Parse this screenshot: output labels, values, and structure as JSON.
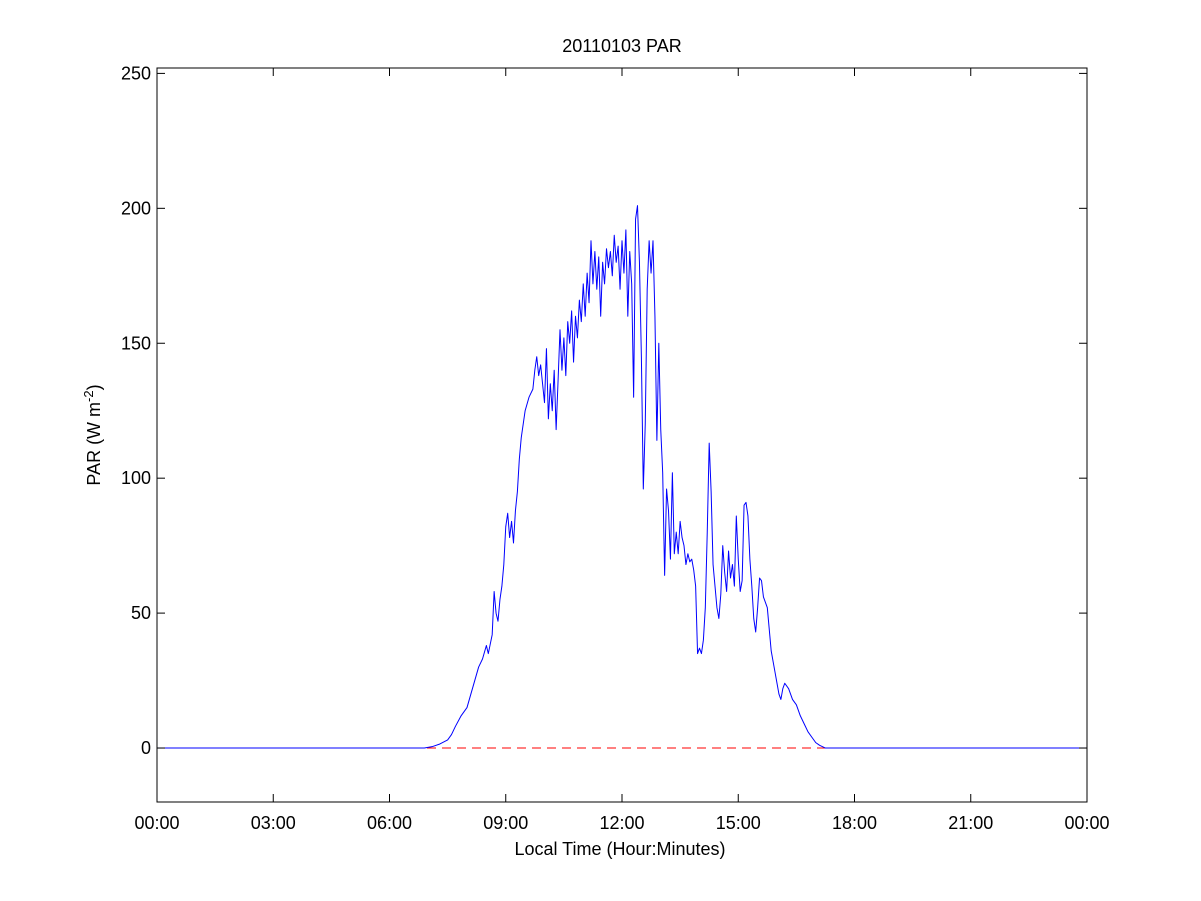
{
  "chart_data": {
    "type": "line",
    "title": "20110103 PAR",
    "xlabel": "Local Time (Hour:Minutes)",
    "ylabel_main": "PAR (W m",
    "ylabel_sup": "-2",
    "ylabel_close": ")",
    "xlim": [
      0,
      24
    ],
    "ylim": [
      -20,
      252
    ],
    "x_ticks": [
      0,
      3,
      6,
      9,
      12,
      15,
      18,
      21,
      24
    ],
    "x_tick_labels": [
      "00:00",
      "03:00",
      "06:00",
      "09:00",
      "12:00",
      "15:00",
      "18:00",
      "21:00",
      "00:00"
    ],
    "y_ticks": [
      0,
      50,
      100,
      150,
      200,
      250
    ],
    "y_tick_labels": [
      "0",
      "50",
      "100",
      "150",
      "200",
      "250"
    ],
    "grid": false,
    "legend": "none",
    "series": [
      {
        "color": "#0000ff",
        "style": "solid",
        "points": [
          [
            0,
            0
          ],
          [
            6.9,
            0
          ],
          [
            7.1,
            0.5
          ],
          [
            7.3,
            1.5
          ],
          [
            7.5,
            3
          ],
          [
            7.6,
            5
          ],
          [
            7.7,
            8
          ],
          [
            7.85,
            12
          ],
          [
            8.0,
            15
          ],
          [
            8.1,
            20
          ],
          [
            8.2,
            25
          ],
          [
            8.3,
            30
          ],
          [
            8.4,
            33
          ],
          [
            8.5,
            38
          ],
          [
            8.55,
            35
          ],
          [
            8.65,
            42
          ],
          [
            8.7,
            58
          ],
          [
            8.75,
            50
          ],
          [
            8.8,
            47
          ],
          [
            8.85,
            55
          ],
          [
            8.9,
            60
          ],
          [
            8.95,
            68
          ],
          [
            9.0,
            82
          ],
          [
            9.05,
            87
          ],
          [
            9.1,
            78
          ],
          [
            9.15,
            84
          ],
          [
            9.2,
            76
          ],
          [
            9.25,
            88
          ],
          [
            9.3,
            95
          ],
          [
            9.35,
            107
          ],
          [
            9.4,
            115
          ],
          [
            9.5,
            125
          ],
          [
            9.6,
            130
          ],
          [
            9.7,
            133
          ],
          [
            9.75,
            140
          ],
          [
            9.8,
            145
          ],
          [
            9.85,
            138
          ],
          [
            9.9,
            142
          ],
          [
            10.0,
            128
          ],
          [
            10.05,
            148
          ],
          [
            10.1,
            122
          ],
          [
            10.15,
            135
          ],
          [
            10.2,
            125
          ],
          [
            10.25,
            140
          ],
          [
            10.3,
            118
          ],
          [
            10.35,
            136
          ],
          [
            10.4,
            155
          ],
          [
            10.45,
            140
          ],
          [
            10.5,
            152
          ],
          [
            10.55,
            138
          ],
          [
            10.6,
            158
          ],
          [
            10.65,
            150
          ],
          [
            10.7,
            162
          ],
          [
            10.75,
            143
          ],
          [
            10.8,
            160
          ],
          [
            10.85,
            152
          ],
          [
            10.9,
            166
          ],
          [
            10.95,
            158
          ],
          [
            11.0,
            172
          ],
          [
            11.05,
            160
          ],
          [
            11.1,
            176
          ],
          [
            11.15,
            165
          ],
          [
            11.2,
            188
          ],
          [
            11.25,
            172
          ],
          [
            11.3,
            184
          ],
          [
            11.35,
            170
          ],
          [
            11.4,
            182
          ],
          [
            11.45,
            160
          ],
          [
            11.5,
            180
          ],
          [
            11.55,
            172
          ],
          [
            11.6,
            185
          ],
          [
            11.65,
            178
          ],
          [
            11.7,
            184
          ],
          [
            11.75,
            175
          ],
          [
            11.8,
            190
          ],
          [
            11.85,
            180
          ],
          [
            11.9,
            186
          ],
          [
            11.95,
            170
          ],
          [
            12.0,
            188
          ],
          [
            12.05,
            176
          ],
          [
            12.1,
            192
          ],
          [
            12.15,
            160
          ],
          [
            12.2,
            184
          ],
          [
            12.25,
            172
          ],
          [
            12.3,
            130
          ],
          [
            12.35,
            196
          ],
          [
            12.4,
            201
          ],
          [
            12.45,
            180
          ],
          [
            12.5,
            145
          ],
          [
            12.55,
            96
          ],
          [
            12.6,
            120
          ],
          [
            12.65,
            170
          ],
          [
            12.7,
            188
          ],
          [
            12.75,
            176
          ],
          [
            12.8,
            188
          ],
          [
            12.85,
            160
          ],
          [
            12.9,
            114
          ],
          [
            12.95,
            150
          ],
          [
            13.0,
            118
          ],
          [
            13.05,
            102
          ],
          [
            13.1,
            64
          ],
          [
            13.15,
            96
          ],
          [
            13.2,
            88
          ],
          [
            13.25,
            70
          ],
          [
            13.3,
            102
          ],
          [
            13.35,
            72
          ],
          [
            13.4,
            80
          ],
          [
            13.45,
            72
          ],
          [
            13.5,
            84
          ],
          [
            13.55,
            78
          ],
          [
            13.6,
            75
          ],
          [
            13.65,
            68
          ],
          [
            13.7,
            72
          ],
          [
            13.75,
            69
          ],
          [
            13.8,
            70
          ],
          [
            13.85,
            66
          ],
          [
            13.9,
            60
          ],
          [
            13.95,
            35
          ],
          [
            14.0,
            37
          ],
          [
            14.05,
            35
          ],
          [
            14.1,
            40
          ],
          [
            14.15,
            52
          ],
          [
            14.2,
            80
          ],
          [
            14.25,
            113
          ],
          [
            14.3,
            95
          ],
          [
            14.35,
            68
          ],
          [
            14.4,
            60
          ],
          [
            14.45,
            52
          ],
          [
            14.5,
            48
          ],
          [
            14.55,
            57
          ],
          [
            14.6,
            75
          ],
          [
            14.65,
            65
          ],
          [
            14.7,
            58
          ],
          [
            14.75,
            73
          ],
          [
            14.8,
            63
          ],
          [
            14.85,
            68
          ],
          [
            14.9,
            60
          ],
          [
            14.95,
            86
          ],
          [
            15.0,
            70
          ],
          [
            15.05,
            58
          ],
          [
            15.1,
            62
          ],
          [
            15.15,
            90
          ],
          [
            15.2,
            91
          ],
          [
            15.25,
            86
          ],
          [
            15.3,
            70
          ],
          [
            15.35,
            60
          ],
          [
            15.4,
            48
          ],
          [
            15.45,
            43
          ],
          [
            15.5,
            52
          ],
          [
            15.55,
            63
          ],
          [
            15.6,
            62
          ],
          [
            15.65,
            56
          ],
          [
            15.7,
            54
          ],
          [
            15.75,
            52
          ],
          [
            15.8,
            44
          ],
          [
            15.85,
            36
          ],
          [
            15.9,
            32
          ],
          [
            15.95,
            28
          ],
          [
            16.0,
            24
          ],
          [
            16.05,
            20
          ],
          [
            16.1,
            18
          ],
          [
            16.15,
            22
          ],
          [
            16.2,
            24
          ],
          [
            16.3,
            22
          ],
          [
            16.4,
            18
          ],
          [
            16.5,
            16
          ],
          [
            16.6,
            12
          ],
          [
            16.7,
            9
          ],
          [
            16.8,
            6
          ],
          [
            16.9,
            4
          ],
          [
            17.0,
            2
          ],
          [
            17.1,
            1
          ],
          [
            17.25,
            0
          ],
          [
            24,
            0
          ]
        ]
      },
      {
        "color": "#ff0000",
        "style": "dashed",
        "points": [
          [
            0,
            0
          ],
          [
            24,
            0
          ]
        ]
      }
    ]
  }
}
